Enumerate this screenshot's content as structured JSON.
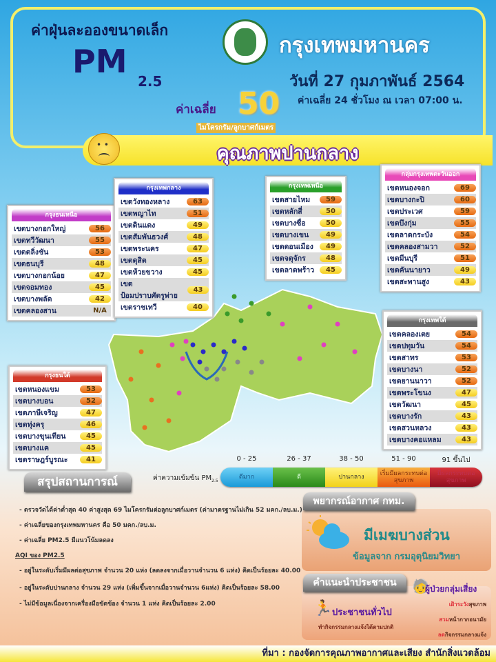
{
  "header": {
    "subtitle": "ค่าฝุ่นละอองขนาดเล็ก",
    "pm": "PM",
    "pm_sub": "2.5",
    "org": "กรุงเทพมหานคร",
    "date": "วันที่ 27 กุมภาพันธ์ 2564",
    "avg_note": "ค่าเฉลี่ย 24 ชั่วโมง ณ เวลา 07:00 น.",
    "avg_label": "ค่าเฉลี่ย",
    "avg_value": "50",
    "unit": "ไมโครกรัม/ลูกบาศก์เมตร",
    "quality": "คุณภาพปานกลาง"
  },
  "colors": {
    "orange": "#e66a10",
    "yellow": "#f5cc20",
    "sky": "#2fa6e2"
  },
  "tables": [
    {
      "title": "กรุงธนเหนือ",
      "color": "#c23cc8",
      "rows": [
        [
          "เขตบางกอกใหญ่",
          "56"
        ],
        [
          "เขตทวีวัฒนา",
          "55"
        ],
        [
          "เขตตลิ่งชัน",
          "53"
        ],
        [
          "เขตธนบุรี",
          "48"
        ],
        [
          "เขตบางกอกน้อย",
          "47"
        ],
        [
          "เขตจอมทอง",
          "45"
        ],
        [
          "เขตบางพลัด",
          "42"
        ],
        [
          "เขตคลองสาน",
          "N/A"
        ]
      ]
    },
    {
      "title": "กรุงเทพกลาง",
      "color": "#1f2fc8",
      "rows": [
        [
          "เขตวังทองหลาง",
          "63"
        ],
        [
          "เขตพญาไท",
          "51"
        ],
        [
          "เขตดินแดง",
          "49"
        ],
        [
          "เขตสัมพันธวงศ์",
          "48"
        ],
        [
          "เขตพระนคร",
          "47"
        ],
        [
          "เขตดุสิต",
          "45"
        ],
        [
          "เขตห้วยขวาง",
          "45"
        ],
        [
          "เขตป้อมปราบศัตรูพ่าย",
          "43"
        ],
        [
          "เขตราชเทวี",
          "40"
        ]
      ]
    },
    {
      "title": "กรุงเทพเหนือ",
      "color": "#2aa02a",
      "rows": [
        [
          "เขตสายไหม",
          "59"
        ],
        [
          "เขตหลักสี่",
          "50"
        ],
        [
          "เขตบางซื่อ",
          "50"
        ],
        [
          "เขตบางเขน",
          "49"
        ],
        [
          "เขตดอนเมือง",
          "49"
        ],
        [
          "เขตจตุจักร",
          "48"
        ],
        [
          "เขตลาดพร้าว",
          "45"
        ]
      ]
    },
    {
      "title": "กลุ่มกรุงเทพตะวันออก",
      "color": "#e84ab8",
      "rows": [
        [
          "เขตหนองจอก",
          "69"
        ],
        [
          "เขตบางกะปิ",
          "60"
        ],
        [
          "เขตประเวศ",
          "59"
        ],
        [
          "เขตบึงกุ่ม",
          "55"
        ],
        [
          "เขตลาดกระบัง",
          "54"
        ],
        [
          "เขตคลองสามวา",
          "52"
        ],
        [
          "เขตมีนบุรี",
          "51"
        ],
        [
          "เขตคันนายาว",
          "49"
        ],
        [
          "เขตสะพานสูง",
          "43"
        ]
      ]
    },
    {
      "title": "กรุงเทพใต้",
      "color": "#6a6a6a",
      "rows": [
        [
          "เขตคลองเตย",
          "54"
        ],
        [
          "เขตปทุมวัน",
          "54"
        ],
        [
          "เขตสาทร",
          "53"
        ],
        [
          "เขตบางนา",
          "52"
        ],
        [
          "เขตยานนาวา",
          "52"
        ],
        [
          "เขตพระโขนง",
          "47"
        ],
        [
          "เขตวัฒนา",
          "45"
        ],
        [
          "เขตบางรัก",
          "43"
        ],
        [
          "เขตสวนหลวง",
          "43"
        ],
        [
          "เขตบางคอแหลม",
          "43"
        ]
      ]
    },
    {
      "title": "กรุงธนใต้",
      "color": "#d23a2a",
      "rows": [
        [
          "เขตหนองแขม",
          "53"
        ],
        [
          "เขตบางบอน",
          "52"
        ],
        [
          "เขตภาษีเจริญ",
          "47"
        ],
        [
          "เขตทุ่งครุ",
          "46"
        ],
        [
          "เขตบางขุนเทียน",
          "45"
        ],
        [
          "เขตบางแค",
          "45"
        ],
        [
          "เขตราษฎร์บูรณะ",
          "41"
        ]
      ]
    }
  ],
  "legend": {
    "label": "ค่าความเข้มข้น PM",
    "label_sub": "2.5",
    "levels": [
      {
        "range": "0 - 25",
        "name": "ดีมาก",
        "color": "#2ab0e8"
      },
      {
        "range": "26 - 37",
        "name": "ดี",
        "color": "#3a9a2a"
      },
      {
        "range": "38 - 50",
        "name": "ปานกลาง",
        "color": "#f6e030"
      },
      {
        "range": "51 - 90",
        "name": "เริ่มมีผลกระทบต่อสุขภาพ",
        "color": "#f07a18"
      },
      {
        "range": "91 ขึ้นไป",
        "name": "มีผลกระทบต่อสุขภาพ",
        "color": "#b81a2a"
      }
    ]
  },
  "summary": {
    "title": "สรุปสถานการณ์",
    "lines": [
      "- ตรวจวัดได้ค่าต่ำสุด 40 ค่าสูงสุด 69 ไมโครกรัมต่อลูกบาศก์เมตร (ค่ามาตรฐานไม่เกิน 52 มคก./ลบ.ม.)",
      "- ค่าเฉลี่ยของกรุงเทพมหานคร คือ 50 มคก./ลบ.ม.",
      "- ค่าเฉลี่ย PM2.5 มีแนวโน้มลดลง",
      "AQI ของ PM2.5",
      "- อยู่ในระดับเริ่มมีผลต่อสุขภาพ จำนวน 20 แห่ง (ลดลงจากเมื่อวานจำนวน 6 แห่ง) คิดเป็นร้อยละ 40.00",
      "- อยู่ในระดับปานกลาง จำนวน 29 แห่ง (เพิ่มขึ้นจากเมื่อวานจำนวน 6แห่ง) คิดเป็นร้อยละ 58.00",
      "- ไม่มีข้อมูลเนื่องจากเครื่องมือขัดข้อง จำนวน 1 แห่ง คิดเป็นร้อยละ 2.00"
    ]
  },
  "forecast": {
    "title": "พยากรณ์อากาศ กทม.",
    "condition": "มีเมฆบางส่วน",
    "source": "ข้อมูลจาก กรมอุตุนิยมวิทยา"
  },
  "advice": {
    "title": "คำแนะนำประชาชน",
    "general": "ประชาชนทั่วไป",
    "general_text": "ทำกิจกรรมกลางแจ้งได้ตามปกติ",
    "risk": "ผู้ป่วยกลุ่มเสี่ยง",
    "risk_items": [
      [
        "เฝ้าระวัง",
        "สุขภาพ"
      ],
      [
        "สวม",
        "หน้ากากอนามัย"
      ],
      [
        "ลด",
        "กิจกรรมกลางแจ้ง"
      ]
    ]
  },
  "footer": "ที่มา : กองจัดการคุณภาพอากาศและเสียง สำนักสิ่งแวดล้อม"
}
